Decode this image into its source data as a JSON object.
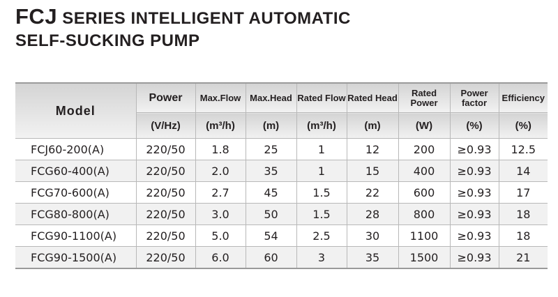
{
  "title": {
    "brand": "FCJ",
    "line1": "SERIES INTELLIGENT AUTOMATIC",
    "line2": "SELF-SUCKING PUMP"
  },
  "table": {
    "model_header": "Model",
    "columns": [
      {
        "name": "Power",
        "unit": "(V/Hz)"
      },
      {
        "name": "Max.Flow",
        "unit": "(m³/h)"
      },
      {
        "name": "Max.Head",
        "unit": "(m)"
      },
      {
        "name": "Rated Flow",
        "unit": "(m³/h)"
      },
      {
        "name": "Rated Head",
        "unit": "(m)"
      },
      {
        "name": "Rated Power",
        "unit": "(W)"
      },
      {
        "name": "Power factor",
        "unit": "(%)"
      },
      {
        "name": "Efficiency",
        "unit": "(%)"
      }
    ],
    "rows": [
      [
        "FCJ60-200(A)",
        "220/50",
        "1.8",
        "25",
        "1",
        "12",
        "200",
        "≥0.93",
        "12.5"
      ],
      [
        "FCG60-400(A)",
        "220/50",
        "2.0",
        "35",
        "1",
        "15",
        "400",
        "≥0.93",
        "14"
      ],
      [
        "FCG70-600(A)",
        "220/50",
        "2.7",
        "45",
        "1.5",
        "22",
        "600",
        "≥0.93",
        "17"
      ],
      [
        "FCG80-800(A)",
        "220/50",
        "3.0",
        "50",
        "1.5",
        "28",
        "800",
        "≥0.93",
        "18"
      ],
      [
        "FCG90-1100(A)",
        "220/50",
        "5.0",
        "54",
        "2.5",
        "30",
        "1100",
        "≥0.93",
        "18"
      ],
      [
        "FCG90-1500(A)",
        "220/50",
        "6.0",
        "60",
        "3",
        "35",
        "1500",
        "≥0.93",
        "21"
      ]
    ]
  }
}
